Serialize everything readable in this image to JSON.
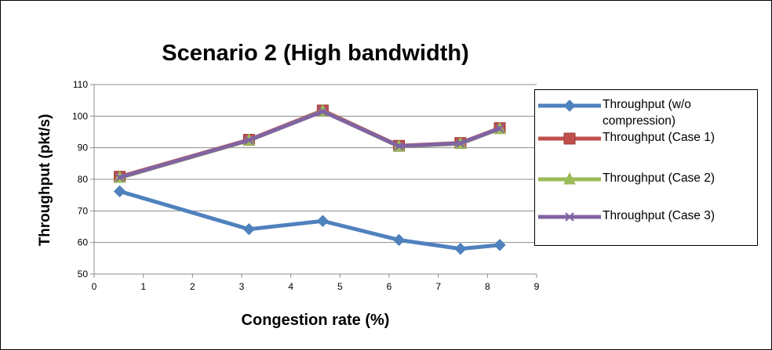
{
  "chart_data": {
    "type": "line",
    "title": "Scenario 2 (High bandwidth)",
    "xlabel": "Congestion rate (%)",
    "ylabel": "Throughput (pkt/s)",
    "xlim": [
      0,
      9
    ],
    "ylim": [
      50,
      110
    ],
    "x_ticks": [
      "0",
      "1",
      "2",
      "3",
      "4",
      "5",
      "6",
      "7",
      "8",
      "9"
    ],
    "y_ticks": [
      "50",
      "60",
      "70",
      "80",
      "90",
      "100",
      "110"
    ],
    "grid": "horizontal",
    "legend_position": "right",
    "series": [
      {
        "name": "Throughput (w/o compression)",
        "color": "#4F81BD",
        "marker": "diamond",
        "x": [
          0.52,
          3.15,
          4.65,
          6.2,
          7.45,
          8.25
        ],
        "y": [
          76.2,
          64.2,
          66.8,
          60.8,
          58.0,
          59.2
        ]
      },
      {
        "name": "Throughput (Case 1)",
        "color": "#C0504D",
        "marker": "square",
        "x": [
          0.52,
          3.15,
          4.65,
          6.2,
          7.45,
          8.25
        ],
        "y": [
          80.8,
          92.5,
          101.8,
          90.6,
          91.5,
          96.2
        ]
      },
      {
        "name": "Throughput (Case 2)",
        "color": "#9BBB59",
        "marker": "triangle",
        "x": [
          0.52,
          3.15,
          4.65,
          6.2,
          7.45,
          8.25
        ],
        "y": [
          80.5,
          92.3,
          101.6,
          90.4,
          91.3,
          96.0
        ]
      },
      {
        "name": "Throughput (Case 3)",
        "color": "#8064A2",
        "marker": "x",
        "x": [
          0.52,
          3.15,
          4.65,
          6.2,
          7.45,
          8.25
        ],
        "y": [
          80.6,
          92.4,
          101.5,
          90.5,
          91.4,
          96.1
        ]
      }
    ]
  }
}
